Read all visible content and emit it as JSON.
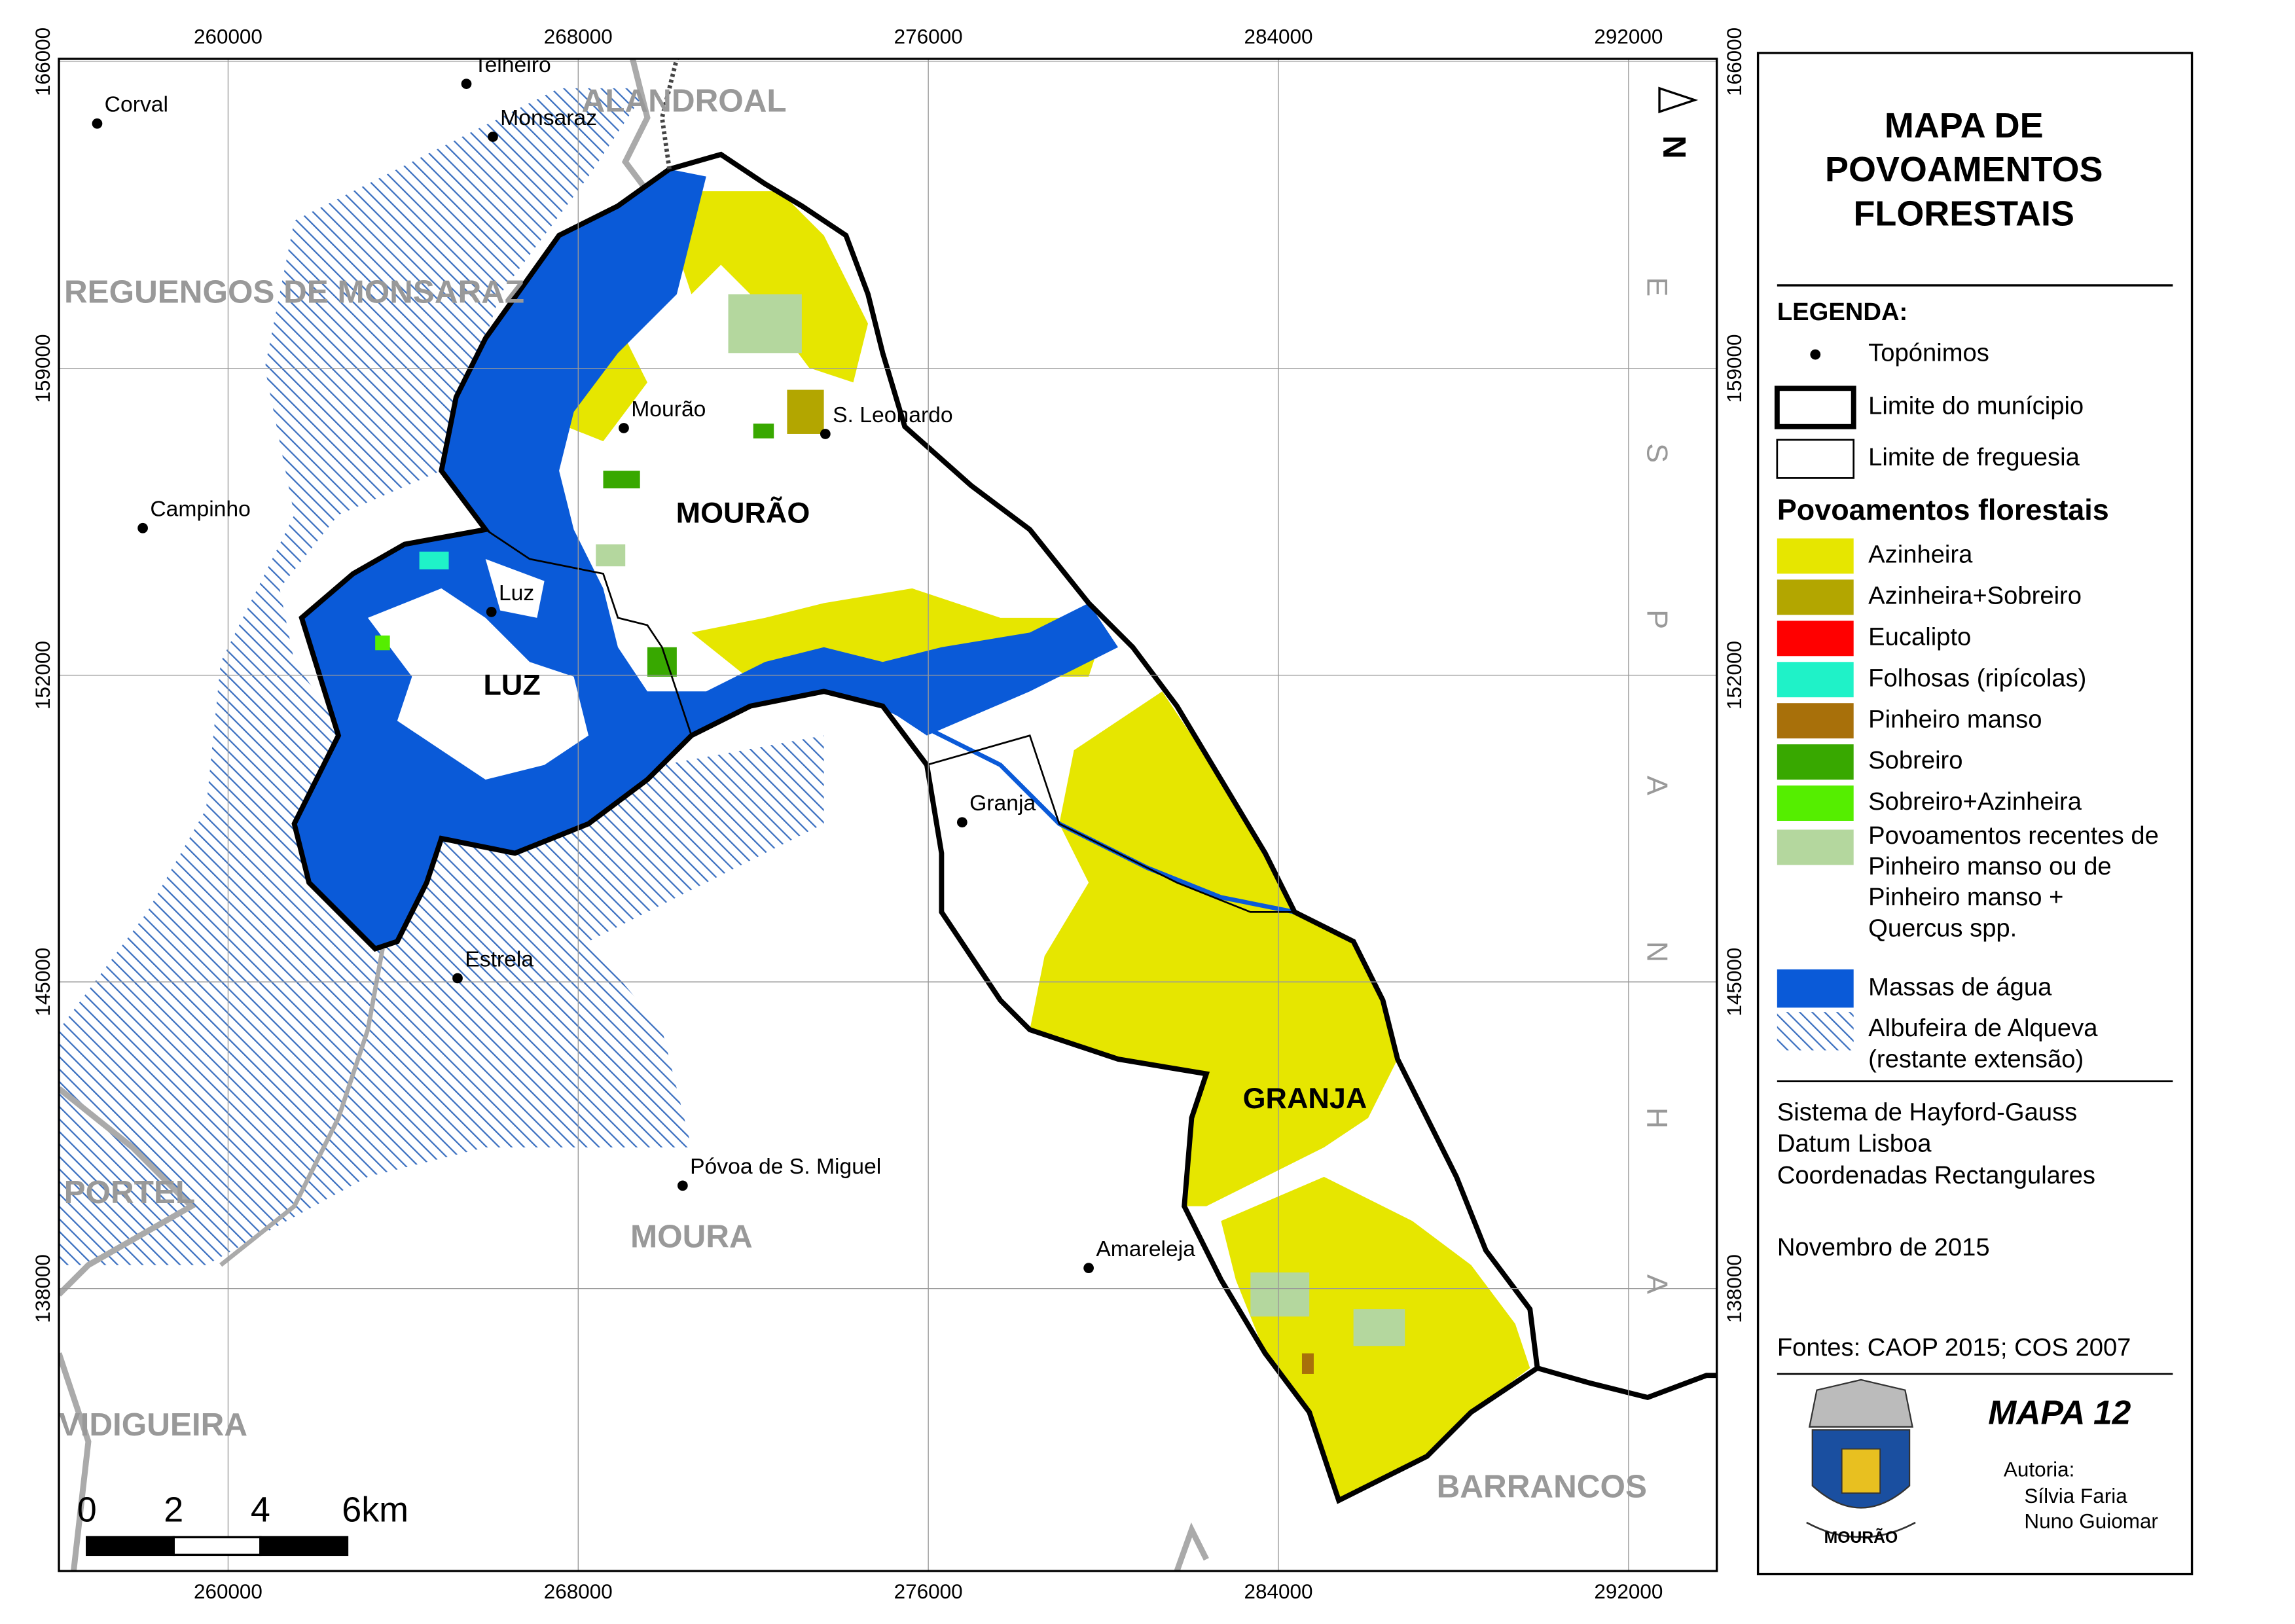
{
  "title": [
    "MAPA DE",
    "POVOAMENTOS",
    "FLORESTAIS"
  ],
  "legend": {
    "heading": "LEGENDA:",
    "symbols": [
      "Topónimos",
      "Limite do munícipio",
      "Limite de freguesia"
    ],
    "forest_heading": "Povoamentos florestais",
    "forest": [
      {
        "label": [
          "Azinheira"
        ],
        "color": "#e6e600"
      },
      {
        "label": [
          "Azinheira+Sobreiro"
        ],
        "color": "#b3a600"
      },
      {
        "label": [
          "Eucalipto"
        ],
        "color": "#ff0000"
      },
      {
        "label": [
          "Folhosas (ripícolas)"
        ],
        "color": "#1ff2c8"
      },
      {
        "label": [
          "Pinheiro manso"
        ],
        "color": "#a8700a"
      },
      {
        "label": [
          "Sobreiro"
        ],
        "color": "#38a800"
      },
      {
        "label": [
          "Sobreiro+Azinheira"
        ],
        "color": "#55ee00"
      },
      {
        "label": [
          "Povoamentos recentes de",
          "Pinheiro manso ou de",
          "Pinheiro manso +",
          "Quercus spp."
        ],
        "color": "#b4d79e"
      }
    ],
    "water": {
      "label": "Massas de água",
      "color": "#0a5ad8"
    },
    "reservoir": {
      "label": [
        "Albufeira de Alqueva",
        "(restante extensão)"
      ],
      "color": "#3a6fc0"
    }
  },
  "projection": [
    "Sistema de Hayford-Gauss",
    "Datum Lisboa",
    "Coordenadas Rectangulares"
  ],
  "date": "Novembro de 2015",
  "sources": "Fontes: CAOP 2015; COS 2007",
  "map_number": "MAPA 12",
  "authors": {
    "heading": "Autoria:",
    "names": [
      "Sílvia Faria",
      "Nuno Guiomar"
    ]
  },
  "crest_label": "MOURÃO",
  "country_letters": [
    "E",
    "S",
    "P",
    "A",
    "N",
    "H",
    "A"
  ],
  "north": "N",
  "scale_labels": [
    "0",
    "2",
    "4",
    "6km"
  ],
  "coordinates": {
    "x": [
      260000,
      268000,
      276000,
      284000,
      292000
    ],
    "y": [
      166000,
      159000,
      152000,
      145000,
      138000
    ]
  },
  "municipalities": [
    "ALANDROAL",
    "REGUENGOS DE MONSARAZ",
    "PORTEL",
    "VIDIGUEIRA",
    "MOURA",
    "BARRANCOS"
  ],
  "parishes": [
    "MOURÃO",
    "LUZ",
    "GRANJA"
  ],
  "places": [
    "Telheiro",
    "Corval",
    "Monsaraz",
    "Mourão",
    "S. Leonardo",
    "Campinho",
    "Luz",
    "Granja",
    "Estrela",
    "Póvoa de S. Miguel",
    "Amareleja"
  ]
}
